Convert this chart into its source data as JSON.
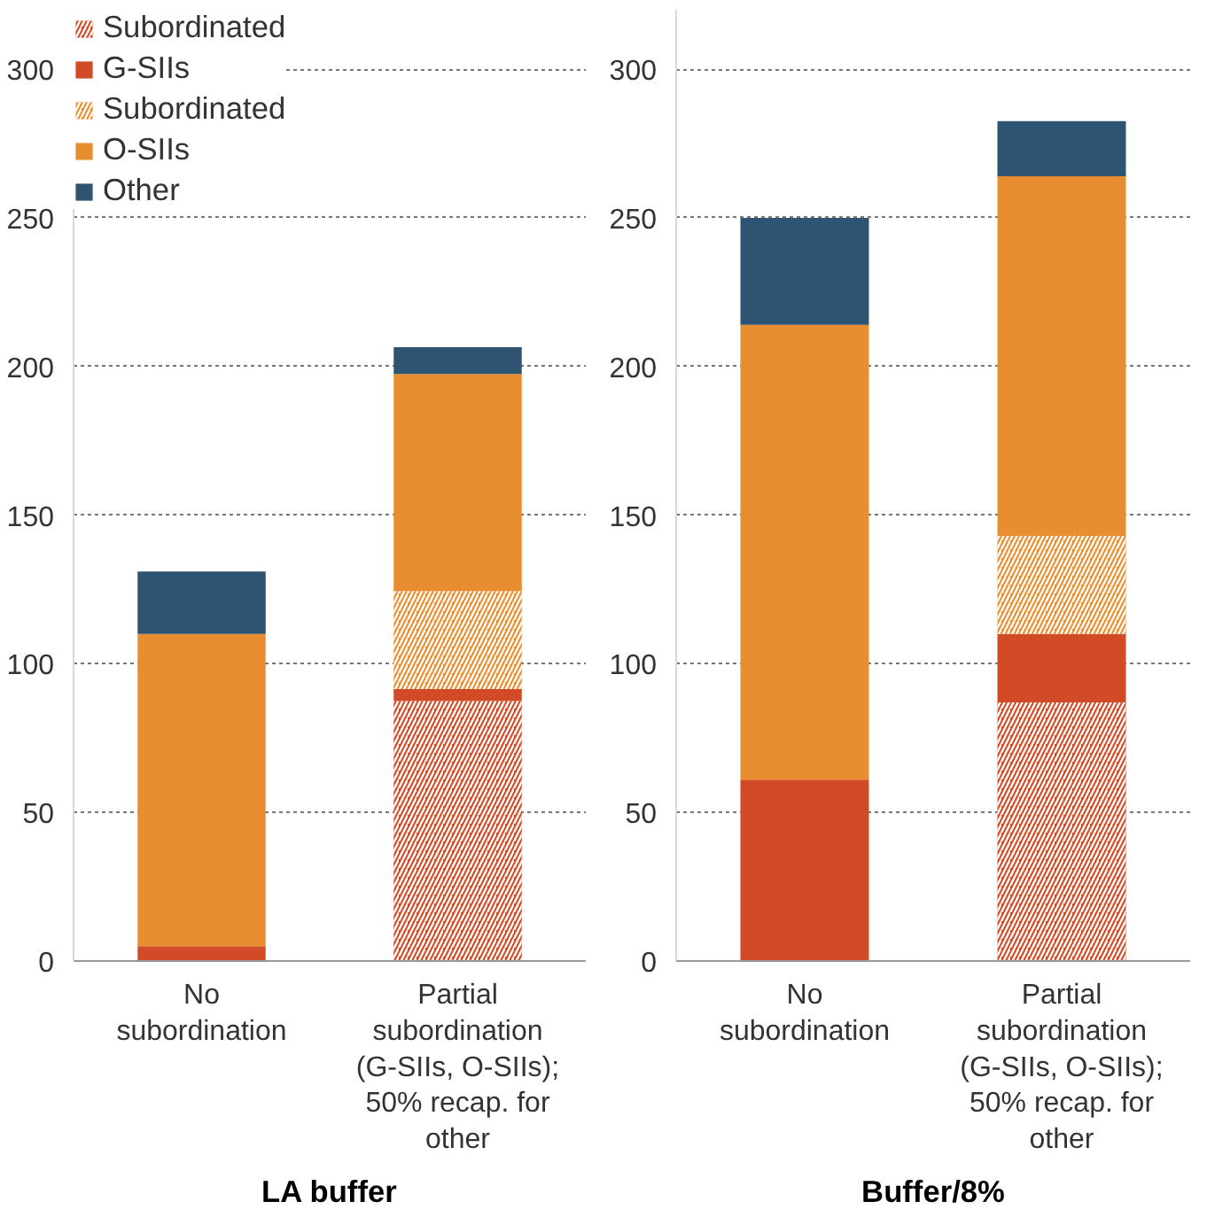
{
  "chart_data": [
    {
      "type": "bar",
      "title": "LA buffer",
      "stacked": true,
      "categories": [
        "No\nsubordination",
        "Partial\nsubordination\n(G-SIIs, O-SIIs);\n50% recap. for\nother"
      ],
      "ylim": [
        0,
        320
      ],
      "yticks": [
        0,
        50,
        100,
        150,
        200,
        250,
        300
      ],
      "grid": "y",
      "legend": "top left",
      "series": [
        {
          "name": "Subordinated",
          "color": "#d24b27",
          "values": [
            0,
            87.5
          ]
        },
        {
          "name": "G-SIIs",
          "color": "#d24b27",
          "values": [
            5,
            4
          ]
        },
        {
          "name": "Subordinated",
          "color": "#e88d30",
          "values": [
            0,
            33
          ]
        },
        {
          "name": "O-SIIs",
          "color": "#e88d30",
          "values": [
            105,
            73
          ]
        },
        {
          "name": "Other",
          "color": "#2e5471",
          "values": [
            21,
            9
          ]
        }
      ]
    },
    {
      "type": "bar",
      "title": "Buffer/8%",
      "stacked": true,
      "categories": [
        "No\nsubordination",
        "Partial\nsubordination\n(G-SIIs, O-SIIs);\n50% recap. for\nother"
      ],
      "ylim": [
        0,
        320
      ],
      "yticks": [
        0,
        50,
        100,
        150,
        200,
        250,
        300
      ],
      "grid": "y",
      "legend": false,
      "series": [
        {
          "color": "#d24b27",
          "values": [
            0,
            87
          ]
        },
        {
          "color": "#d24b27",
          "values": [
            61,
            23
          ]
        },
        {
          "color": "#e88d30",
          "values": [
            0,
            33
          ]
        },
        {
          "color": "#e88d30",
          "values": [
            153,
            121
          ]
        },
        {
          "color": "#2e5471",
          "values": [
            36,
            18.5
          ]
        }
      ]
    }
  ]
}
